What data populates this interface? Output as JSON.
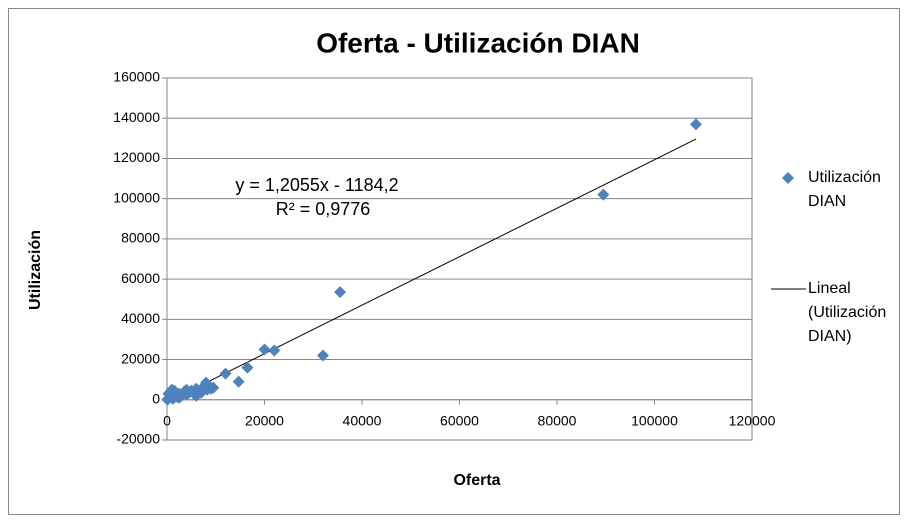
{
  "chart_data": {
    "type": "scatter",
    "title": "Oferta - Utilización DIAN",
    "x_label": "Oferta",
    "y_label": "Utilización",
    "series": [
      {
        "name": "Utilización DIAN",
        "color": "#4f81bd",
        "x": [
          108500,
          89500,
          35500,
          32000,
          22000,
          20000,
          16500,
          14700,
          12000,
          9500,
          9000,
          8500,
          8000,
          7500,
          7000,
          6500,
          6000,
          5500,
          5000,
          4500,
          4000,
          3500,
          3000,
          2500,
          2000,
          1500,
          1000,
          800,
          500,
          200,
          100,
          300,
          1200,
          2500,
          4000,
          6000,
          7000,
          8200
        ],
        "values": [
          137000,
          102000,
          53500,
          22000,
          24500,
          25000,
          16000,
          9000,
          13000,
          6000,
          5500,
          7000,
          8500,
          6500,
          5000,
          4000,
          5500,
          3000,
          4500,
          3500,
          2500,
          4000,
          2000,
          3000,
          1500,
          4500,
          5000,
          2000,
          1000,
          500,
          0,
          3000,
          500,
          1000,
          5000,
          2000,
          3500,
          5000
        ]
      }
    ],
    "trendline": {
      "name": "Lineal (Utilización DIAN)",
      "color": "#000000",
      "slope": 1.2055,
      "intercept": -1184.2,
      "label": "y = 1,2055x - 1184,2",
      "r2_label": "R² = 0,9776"
    },
    "xlim": [
      0,
      120000
    ],
    "xticks": [
      0,
      20000,
      40000,
      60000,
      80000,
      100000,
      120000
    ],
    "ylim": [
      -20000,
      160000
    ],
    "yticks": [
      -20000,
      0,
      20000,
      40000,
      60000,
      80000,
      100000,
      120000,
      140000,
      160000
    ],
    "grid": true,
    "legend": "right"
  }
}
